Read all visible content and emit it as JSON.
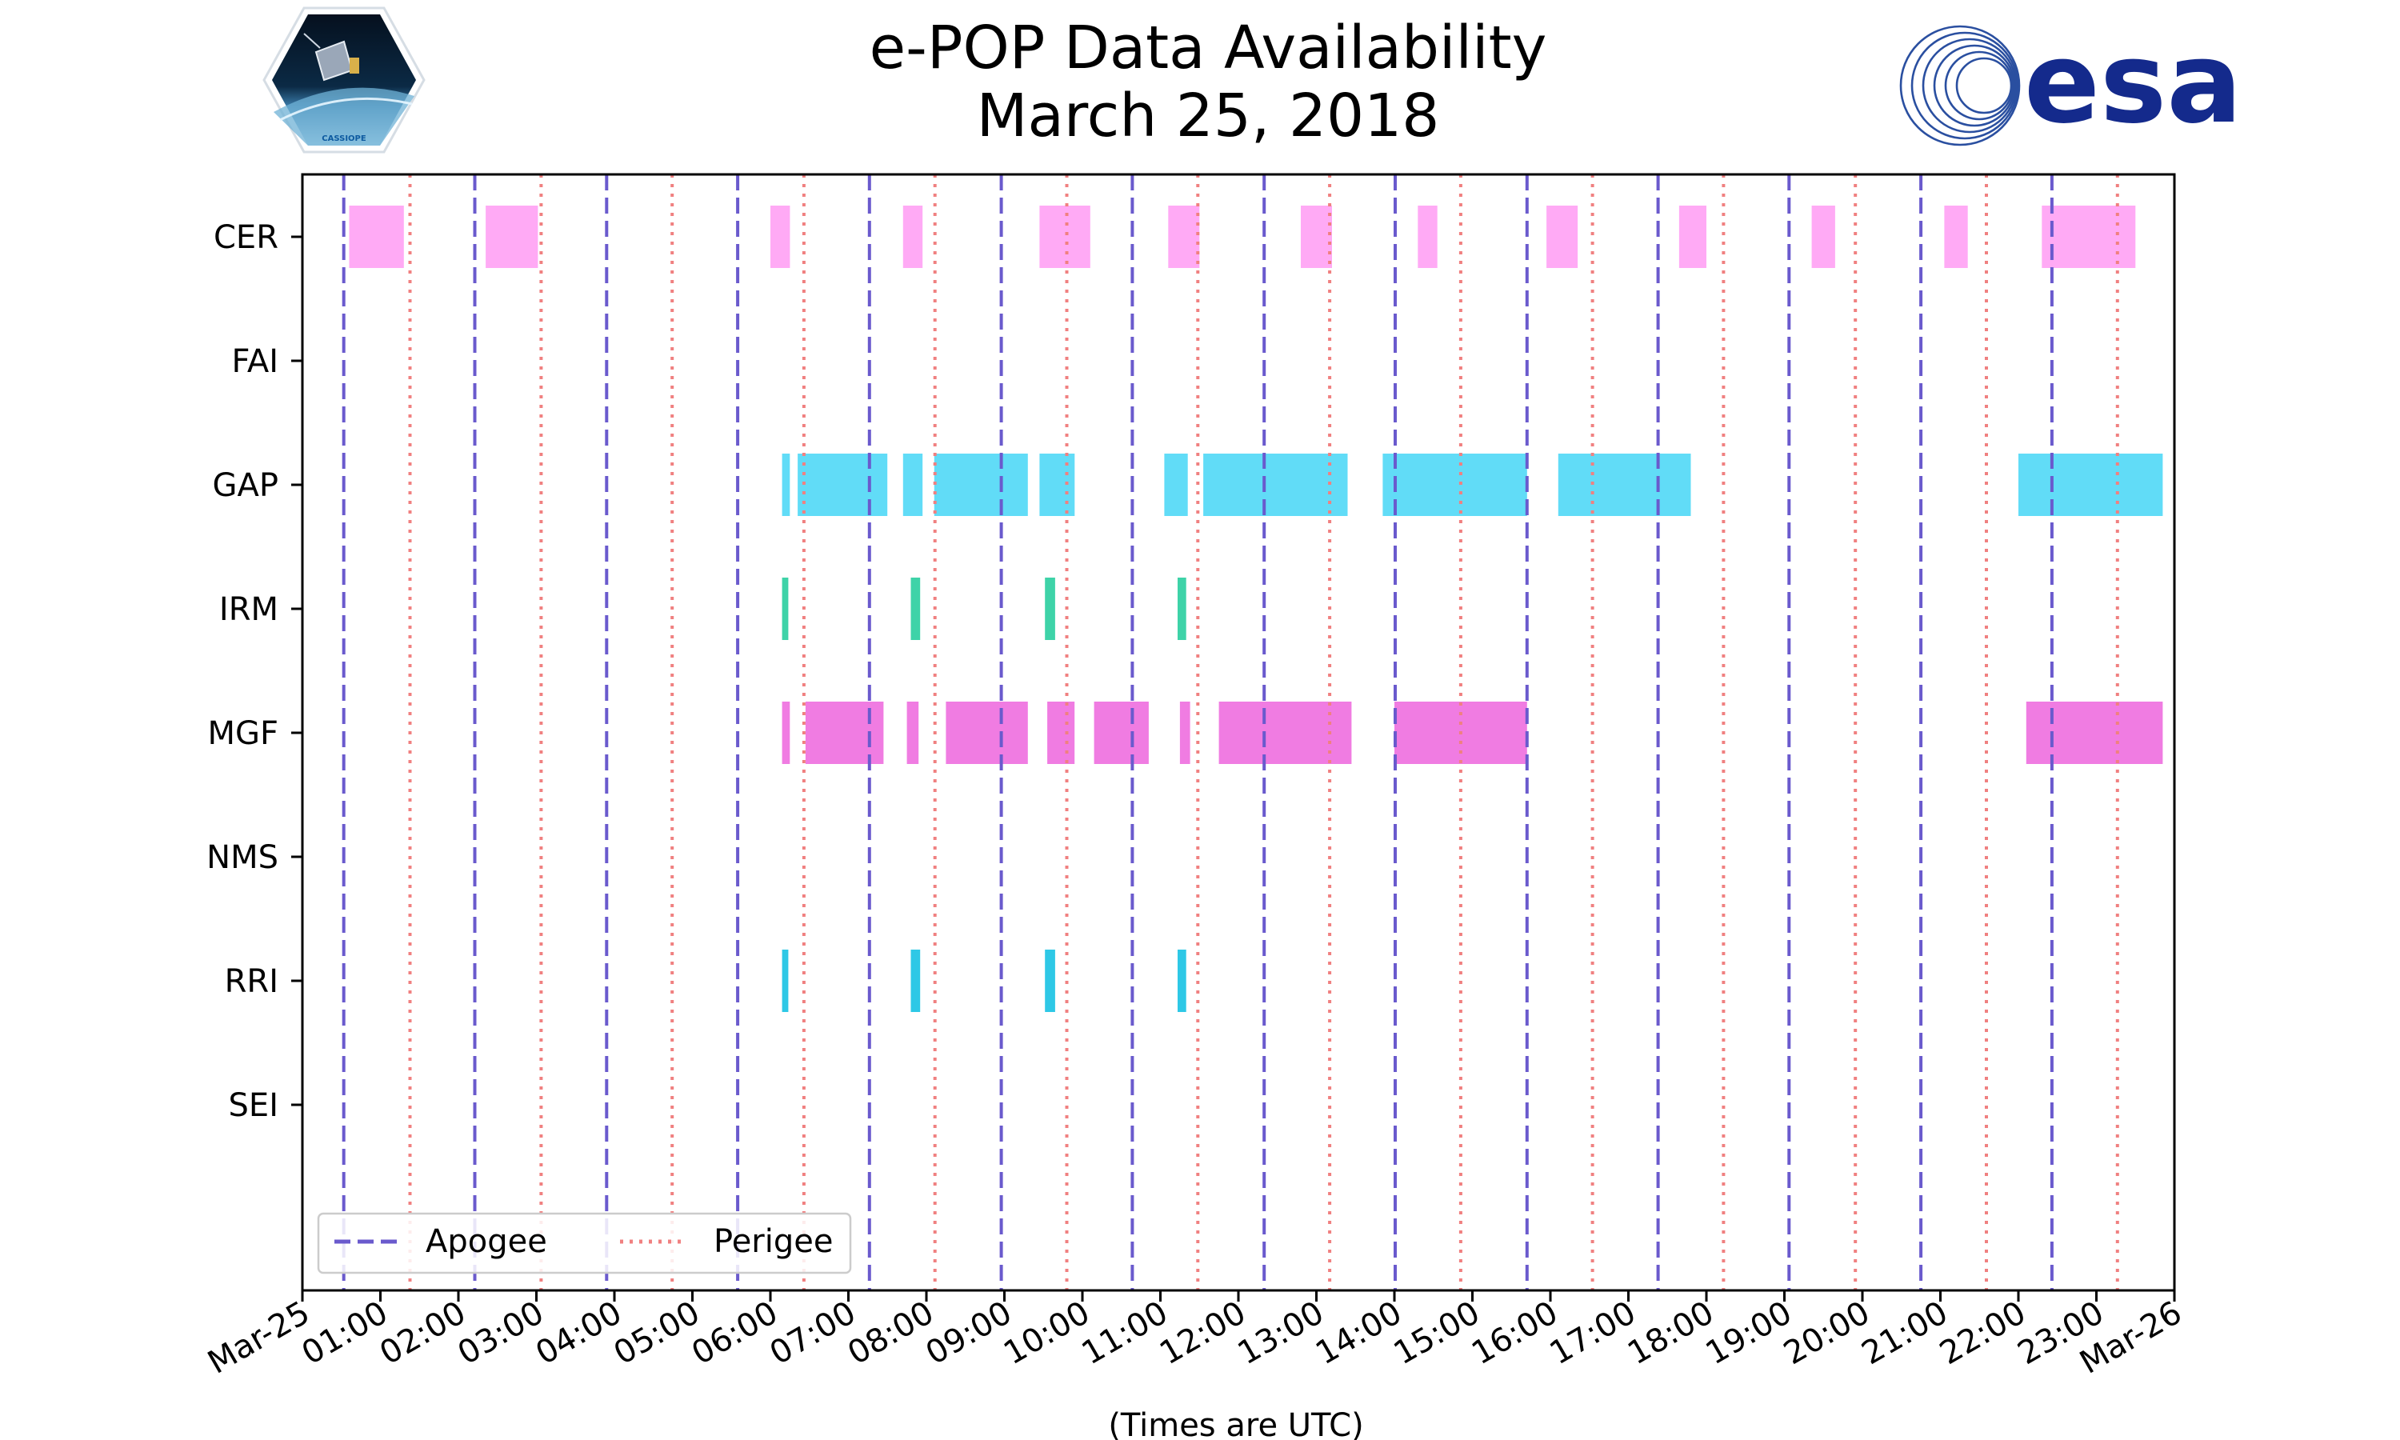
{
  "chart_data": {
    "type": "timeline",
    "title": "e-POP Data Availability",
    "subtitle": "March 25, 2018",
    "xlabel": "(Times are UTC)",
    "xlim_hours": [
      0,
      24
    ],
    "x_tick_hours": [
      0,
      1,
      2,
      3,
      4,
      5,
      6,
      7,
      8,
      9,
      10,
      11,
      12,
      13,
      14,
      15,
      16,
      17,
      18,
      19,
      20,
      21,
      22,
      23,
      24
    ],
    "x_tick_labels": [
      "Mar-25",
      "01:00",
      "02:00",
      "03:00",
      "04:00",
      "05:00",
      "06:00",
      "07:00",
      "08:00",
      "09:00",
      "10:00",
      "11:00",
      "12:00",
      "13:00",
      "14:00",
      "15:00",
      "16:00",
      "17:00",
      "18:00",
      "19:00",
      "20:00",
      "21:00",
      "22:00",
      "23:00",
      "Mar-26"
    ],
    "instruments": [
      "CER",
      "FAI",
      "GAP",
      "IRM",
      "MGF",
      "NMS",
      "RRI",
      "SEI"
    ],
    "apogee_hours": [
      0.53,
      2.21,
      3.9,
      5.58,
      7.27,
      8.96,
      10.64,
      12.33,
      14.01,
      15.7,
      17.38,
      19.06,
      20.75,
      22.43
    ],
    "perigee_hours": [
      1.38,
      3.06,
      4.74,
      6.43,
      8.11,
      9.8,
      11.48,
      13.17,
      14.85,
      16.54,
      18.22,
      19.91,
      21.59,
      23.27
    ],
    "legend": {
      "apogee_label": "Apogee",
      "perigee_label": "Perigee",
      "location": "lower-left"
    },
    "colors": {
      "apogee": "#6a5acd",
      "perigee": "#f08080",
      "CER": "#ffaaf5",
      "GAP": "#61dcf7",
      "IRM": "#3ed3a8",
      "MGF": "#f07ce2",
      "RRI": "#2ec8e6"
    },
    "series": [
      {
        "name": "CER",
        "intervals": [
          [
            0.6,
            1.3
          ],
          [
            2.35,
            3.02
          ],
          [
            6.0,
            6.25
          ],
          [
            7.7,
            7.95
          ],
          [
            9.45,
            10.1
          ],
          [
            11.1,
            11.5
          ],
          [
            12.8,
            13.2
          ],
          [
            14.3,
            14.55
          ],
          [
            15.95,
            16.35
          ],
          [
            17.65,
            18.0
          ],
          [
            19.35,
            19.65
          ],
          [
            21.05,
            21.35
          ],
          [
            22.3,
            23.5
          ]
        ]
      },
      {
        "name": "FAI",
        "intervals": []
      },
      {
        "name": "GAP",
        "intervals": [
          [
            6.15,
            6.25
          ],
          [
            6.35,
            7.5
          ],
          [
            7.7,
            7.95
          ],
          [
            8.1,
            9.3
          ],
          [
            9.45,
            9.9
          ],
          [
            11.05,
            11.35
          ],
          [
            11.55,
            13.4
          ],
          [
            13.85,
            15.7
          ],
          [
            16.1,
            17.8
          ],
          [
            22.0,
            23.85
          ]
        ]
      },
      {
        "name": "IRM",
        "intervals": [
          [
            6.15,
            6.23
          ],
          [
            7.8,
            7.92
          ],
          [
            9.52,
            9.65
          ],
          [
            11.22,
            11.33
          ]
        ]
      },
      {
        "name": "MGF",
        "intervals": [
          [
            6.15,
            6.25
          ],
          [
            6.45,
            7.45
          ],
          [
            7.75,
            7.9
          ],
          [
            8.25,
            9.3
          ],
          [
            9.55,
            9.9
          ],
          [
            10.15,
            10.85
          ],
          [
            11.25,
            11.38
          ],
          [
            11.75,
            13.45
          ],
          [
            14.0,
            15.7
          ],
          [
            22.1,
            23.85
          ]
        ]
      },
      {
        "name": "NMS",
        "intervals": []
      },
      {
        "name": "RRI",
        "intervals": [
          [
            6.15,
            6.23
          ],
          [
            7.8,
            7.92
          ],
          [
            9.52,
            9.65
          ],
          [
            11.22,
            11.33
          ]
        ]
      },
      {
        "name": "SEI",
        "intervals": []
      }
    ]
  },
  "logos": {
    "cassiope_text": "CASSIOPE",
    "esa_text": "esa"
  }
}
